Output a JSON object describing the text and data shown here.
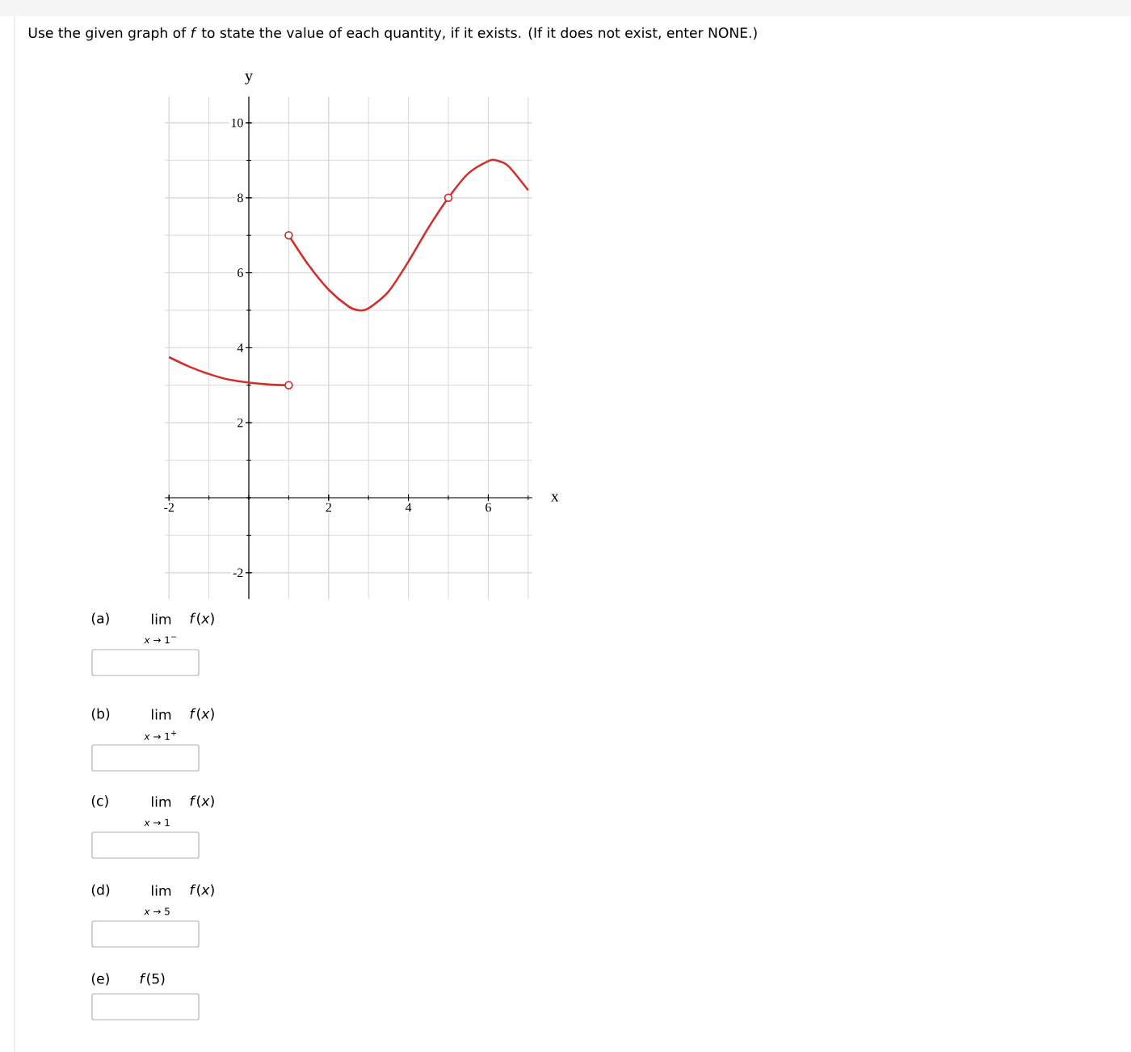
{
  "chart_data": {
    "type": "line",
    "title": "Use the given graph of *f* to state the value of each quantity, if it exists. (If it does not exist, enter NONE.)",
    "xlabel": "x",
    "ylabel": "y",
    "xlim": [
      -2.1,
      7.1
    ],
    "ylim": [
      -2.7,
      10.7
    ],
    "xticks": [
      -2,
      2,
      4,
      6
    ],
    "yticks": [
      -2,
      2,
      4,
      6,
      8,
      10
    ],
    "grid": true,
    "series": [
      {
        "color": "#d0312d",
        "x": [
          -2,
          -1.5,
          -1,
          -0.5,
          0,
          0.5,
          1
        ],
        "values": [
          3.75,
          3.5,
          3.3,
          3.15,
          3.07,
          3.02,
          3.0
        ]
      },
      {
        "color": "#d0312d",
        "x": [
          1,
          1.5,
          2,
          2.5,
          2.75,
          3,
          3.5,
          4,
          4.5,
          5,
          5.5,
          6,
          6.2,
          6.5,
          7
        ],
        "values": [
          7,
          6.2,
          5.55,
          5.1,
          5.0,
          5.05,
          5.5,
          6.3,
          7.2,
          8.0,
          8.65,
          8.98,
          9.0,
          8.85,
          8.2
        ]
      },
      {
        "type": "scatter",
        "color": "#d0312d",
        "x": [
          1
        ],
        "values": [
          7
        ]
      },
      {
        "type": "scatter",
        "color": "#d0312d",
        "x": [
          1,
          5
        ],
        "values": [
          3,
          8
        ]
      }
    ],
    "annotations": [
      "(a)",
      "lim",
      "*f*(*x*)",
      "*x* → 1$^{−}$",
      "(b)",
      "lim",
      "*f*(*x*)",
      "*x* → 1$^{+}$",
      "(c)",
      "lim",
      "*f*(*x*)",
      "*x* → 1",
      "(d)",
      "lim",
      "*f*(*x*)",
      "*x* → 5",
      "(e)",
      "*f*(5)"
    ]
  }
}
